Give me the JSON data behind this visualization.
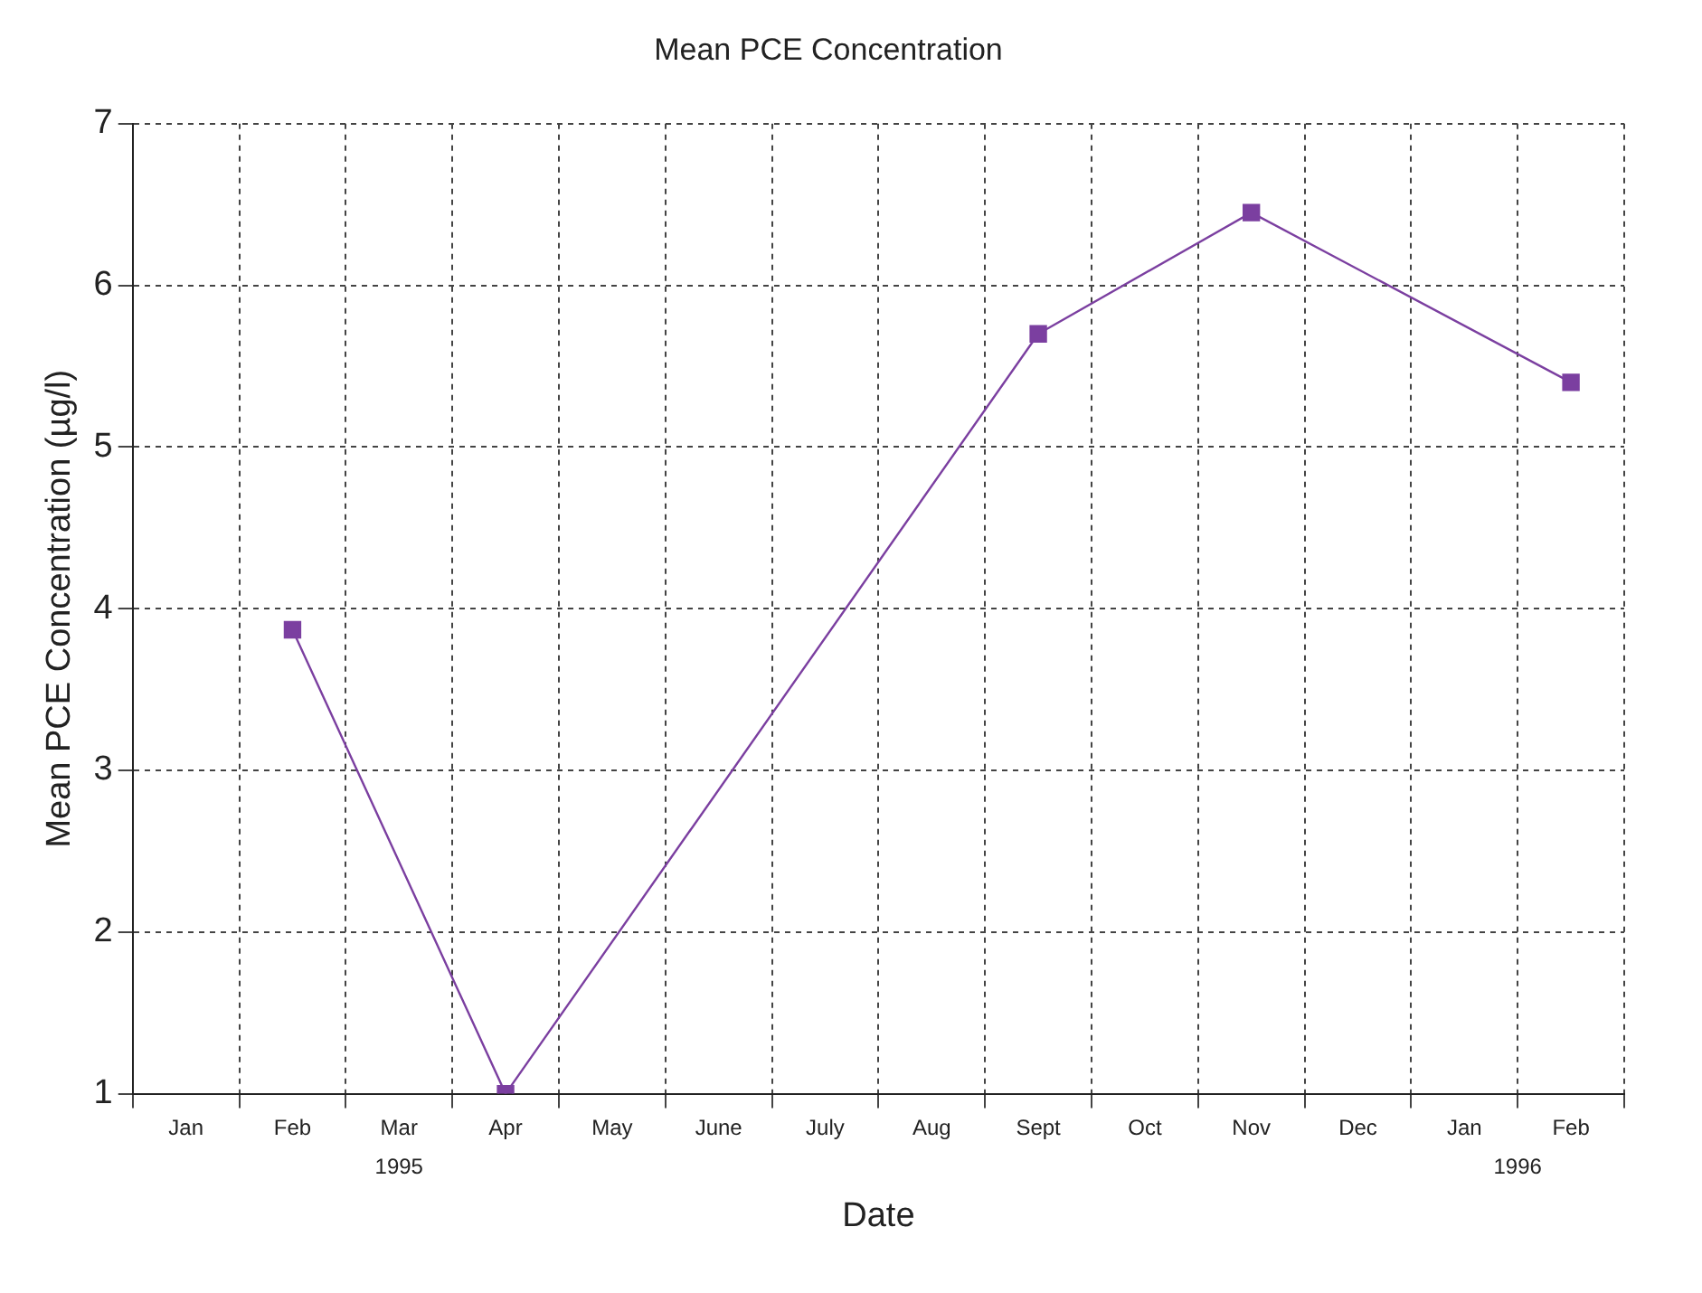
{
  "chart_data": {
    "type": "line",
    "title": "Mean PCE Concentration",
    "xlabel": "Date",
    "ylabel": "Mean PCE Concentration (µg/l)",
    "categories": [
      "Jan",
      "Feb",
      "Mar",
      "Apr",
      "May",
      "June",
      "July",
      "Aug",
      "Sept",
      "Oct",
      "Nov",
      "Dec",
      "Jan",
      "Feb"
    ],
    "series": [
      {
        "color": "#7b3fa0",
        "values": [
          null,
          3.87,
          null,
          1.0,
          null,
          null,
          null,
          null,
          5.7,
          null,
          6.45,
          null,
          null,
          5.4
        ]
      }
    ],
    "ylim": [
      1,
      7
    ],
    "yticks": [
      1,
      2,
      3,
      4,
      5,
      6,
      7
    ],
    "grid": true,
    "legend": false,
    "marker": "square",
    "line_style": "solid",
    "annotations": [
      "1995",
      "1996"
    ]
  }
}
